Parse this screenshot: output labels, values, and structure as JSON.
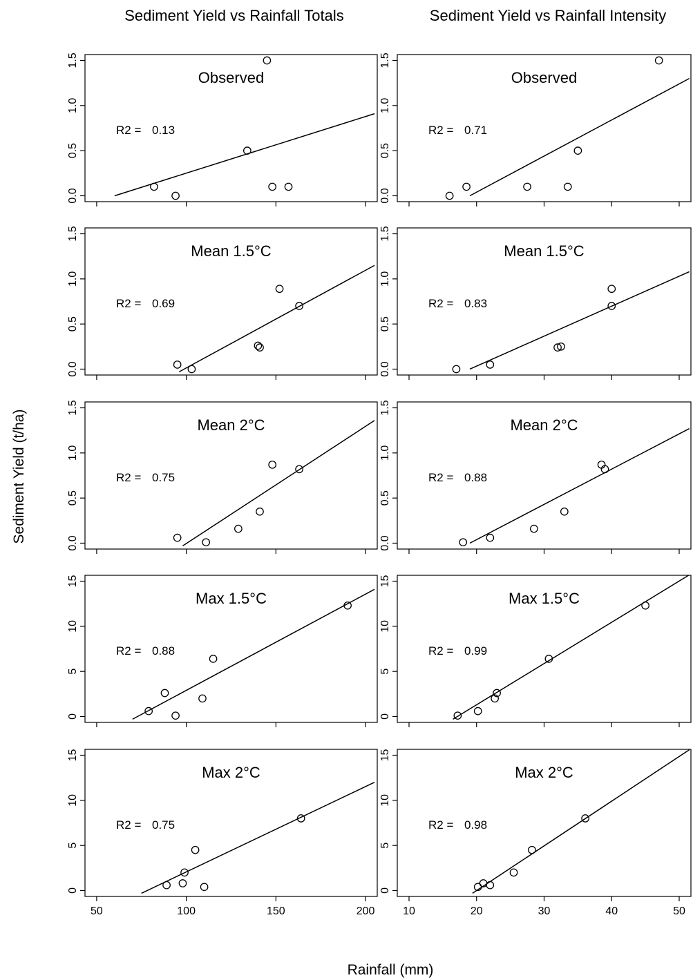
{
  "chart_data": {
    "type": "scatter",
    "ylabel": "Sediment Yield (t/ha)",
    "xlabel": "Rainfall (mm)",
    "columns": [
      {
        "title": "Sediment Yield vs Rainfall Totals",
        "xlim": [
          50,
          200
        ],
        "xticks": [
          "50",
          "100",
          "150",
          "200"
        ]
      },
      {
        "title": "Sediment Yield vs Rainfall Intensity",
        "xlim": [
          10,
          50
        ],
        "xticks": [
          "10",
          "20",
          "30",
          "40",
          "50"
        ]
      }
    ],
    "rows": [
      {
        "label": "Observed",
        "ylim": [
          0,
          1.5
        ],
        "yticks": [
          "0.0",
          "0.5",
          "1.0",
          "1.5"
        ]
      },
      {
        "label": "Mean 1.5°C",
        "ylim": [
          0,
          1.5
        ],
        "yticks": [
          "0.0",
          "0.5",
          "1.0",
          "1.5"
        ]
      },
      {
        "label": "Mean 2°C",
        "ylim": [
          0,
          1.5
        ],
        "yticks": [
          "0.0",
          "0.5",
          "1.0",
          "1.5"
        ]
      },
      {
        "label": "Max 1.5°C",
        "ylim": [
          0,
          15
        ],
        "yticks": [
          "0",
          "5",
          "10",
          "15"
        ]
      },
      {
        "label": "Max 2°C",
        "ylim": [
          0,
          15
        ],
        "yticks": [
          "0",
          "5",
          "10",
          "15"
        ]
      }
    ],
    "panels": [
      {
        "row": 0,
        "col": 0,
        "r2_prefix": "R2 =",
        "r2": "0.13",
        "points": [
          [
            82,
            0.1
          ],
          [
            94,
            0.0
          ],
          [
            134,
            0.5
          ],
          [
            145,
            1.5
          ],
          [
            148,
            0.1
          ],
          [
            157,
            0.1
          ]
        ],
        "fit": [
          [
            60,
            0.0
          ],
          [
            205,
            0.91
          ]
        ]
      },
      {
        "row": 0,
        "col": 1,
        "r2_prefix": "R2 =",
        "r2": "0.71",
        "points": [
          [
            16,
            0.0
          ],
          [
            18.5,
            0.1
          ],
          [
            27.5,
            0.1
          ],
          [
            33.5,
            0.1
          ],
          [
            35,
            0.5
          ],
          [
            47,
            1.5
          ]
        ],
        "fit": [
          [
            19,
            0.0
          ],
          [
            51.5,
            1.3
          ]
        ]
      },
      {
        "row": 1,
        "col": 0,
        "r2_prefix": "R2 =",
        "r2": "0.69",
        "points": [
          [
            95,
            0.05
          ],
          [
            103,
            0.0
          ],
          [
            140,
            0.26
          ],
          [
            141,
            0.24
          ],
          [
            152,
            0.89
          ],
          [
            163,
            0.7
          ]
        ],
        "fit": [
          [
            96,
            -0.03
          ],
          [
            205,
            1.15
          ]
        ]
      },
      {
        "row": 1,
        "col": 1,
        "r2_prefix": "R2 =",
        "r2": "0.83",
        "points": [
          [
            17,
            0.0
          ],
          [
            22,
            0.05
          ],
          [
            32,
            0.24
          ],
          [
            32.5,
            0.25
          ],
          [
            40,
            0.89
          ],
          [
            40,
            0.7
          ]
        ],
        "fit": [
          [
            19,
            0.0
          ],
          [
            51.5,
            1.08
          ]
        ]
      },
      {
        "row": 2,
        "col": 0,
        "r2_prefix": "R2 =",
        "r2": "0.75",
        "points": [
          [
            95,
            0.06
          ],
          [
            111,
            0.01
          ],
          [
            129,
            0.16
          ],
          [
            141,
            0.35
          ],
          [
            148,
            0.87
          ],
          [
            163,
            0.82
          ]
        ],
        "fit": [
          [
            98,
            -0.03
          ],
          [
            205,
            1.36
          ]
        ]
      },
      {
        "row": 2,
        "col": 1,
        "r2_prefix": "R2 =",
        "r2": "0.88",
        "points": [
          [
            18,
            0.01
          ],
          [
            22,
            0.06
          ],
          [
            28.5,
            0.16
          ],
          [
            33,
            0.35
          ],
          [
            38.5,
            0.87
          ],
          [
            39,
            0.82
          ]
        ],
        "fit": [
          [
            19,
            0.0
          ],
          [
            51.5,
            1.27
          ]
        ]
      },
      {
        "row": 3,
        "col": 0,
        "r2_prefix": "R2 =",
        "r2": "0.88",
        "points": [
          [
            79,
            0.6
          ],
          [
            88,
            2.6
          ],
          [
            94,
            0.1
          ],
          [
            109,
            2.0
          ],
          [
            115,
            6.4
          ],
          [
            190,
            12.3
          ]
        ],
        "fit": [
          [
            70,
            -0.3
          ],
          [
            205,
            14.1
          ]
        ]
      },
      {
        "row": 3,
        "col": 1,
        "r2_prefix": "R2 =",
        "r2": "0.99",
        "points": [
          [
            17.2,
            0.1
          ],
          [
            20.2,
            0.6
          ],
          [
            22.7,
            2.0
          ],
          [
            23,
            2.6
          ],
          [
            30.7,
            6.4
          ],
          [
            45,
            12.3
          ]
        ],
        "fit": [
          [
            16.5,
            -0.3
          ],
          [
            51.5,
            15.7
          ]
        ]
      },
      {
        "row": 4,
        "col": 0,
        "r2_prefix": "R2 =",
        "r2": "0.75",
        "points": [
          [
            89,
            0.6
          ],
          [
            98,
            0.8
          ],
          [
            99,
            2.0
          ],
          [
            105,
            4.5
          ],
          [
            110,
            0.4
          ],
          [
            164,
            8.0
          ]
        ],
        "fit": [
          [
            75,
            -0.3
          ],
          [
            205,
            12.0
          ]
        ]
      },
      {
        "row": 4,
        "col": 1,
        "r2_prefix": "R2 =",
        "r2": "0.98",
        "points": [
          [
            20.2,
            0.4
          ],
          [
            21,
            0.8
          ],
          [
            22,
            0.6
          ],
          [
            25.5,
            2.0
          ],
          [
            28.2,
            4.5
          ],
          [
            36.1,
            8.0
          ]
        ],
        "fit": [
          [
            19.4,
            -0.3
          ],
          [
            51.5,
            15.6
          ]
        ]
      }
    ]
  }
}
